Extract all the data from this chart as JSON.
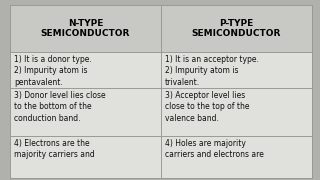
{
  "bg_color": "#d8d8d5",
  "header_bg": "#c8c8c5",
  "cell_bg": "#e0e0dc",
  "col1_header": "N-TYPE\nSEMICONDUCTOR",
  "col2_header": "P-TYPE\nSEMICONDUCTOR",
  "rows": [
    [
      "1) It is a donor type.\n2) Impurity atom is\npentavalent.",
      "1) It is an acceptor type.\n2) Impurity atom is\ntrivalent."
    ],
    [
      "3) Donor level lies close\nto the bottom of the\nconduction band.",
      "3) Acceptor level lies\nclose to the top of the\nvalence band."
    ],
    [
      "4) Electrons are the\nmajority carriers and",
      "4) Holes are majority\ncarriers and electrons are"
    ]
  ],
  "header_fontsize": 6.5,
  "cell_fontsize": 5.5,
  "line_color": "#999995",
  "text_color": "#111111",
  "header_text_color": "#000000",
  "outer_bg": "#b0b0ac"
}
